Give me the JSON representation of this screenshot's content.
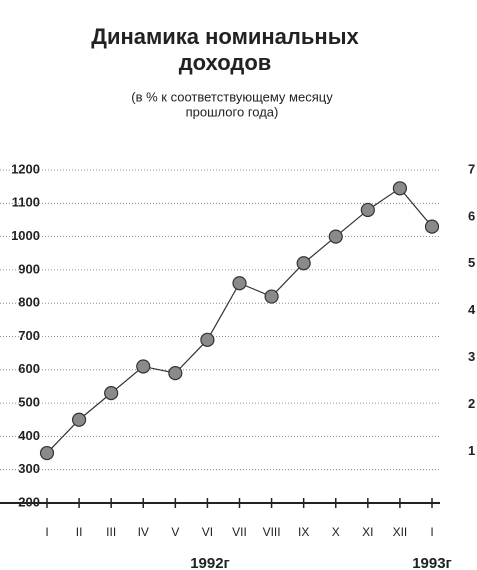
{
  "chart_data": {
    "type": "line",
    "title": [
      "Динамика номинальных",
      "доходов"
    ],
    "subtitle": [
      "(в % к соответствующему месяцу",
      "прошлого года)"
    ],
    "categories": [
      "I",
      "II",
      "III",
      "IV",
      "V",
      "VI",
      "VII",
      "VIII",
      "IX",
      "X",
      "XI",
      "XII",
      "I"
    ],
    "series": [
      {
        "color": "#333333",
        "values": [
          350,
          450,
          530,
          610,
          590,
          690,
          860,
          820,
          920,
          1000,
          1080,
          1145,
          1030
        ]
      }
    ],
    "ylim": [
      200,
      1200
    ],
    "yticks": [
      200,
      300,
      400,
      500,
      600,
      700,
      800,
      900,
      1000,
      1100,
      1200
    ],
    "y2lim": [
      -0.1,
      7
    ],
    "y2ticks": [
      1,
      2,
      3,
      4,
      5,
      6,
      7
    ],
    "grid": true,
    "annotations": [
      "1992г",
      "1993г"
    ]
  }
}
